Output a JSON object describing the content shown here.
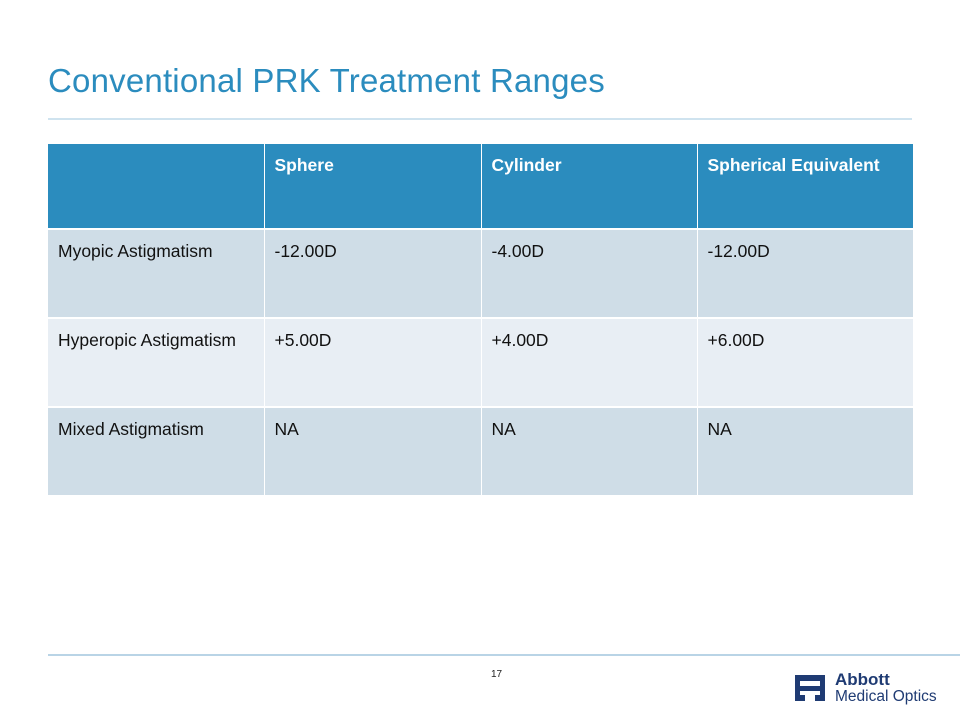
{
  "slide": {
    "title": "Conventional PRK Treatment Ranges",
    "page_number": "17"
  },
  "table": {
    "headers": [
      "",
      "Sphere",
      "Cylinder",
      "Spherical Equivalent"
    ],
    "rows": [
      [
        "Myopic Astigmatism",
        "-12.00D",
        "-4.00D",
        "-12.00D"
      ],
      [
        "Hyperopic Astigmatism",
        "+5.00D",
        "+4.00D",
        "+6.00D"
      ],
      [
        "Mixed Astigmatism",
        "NA",
        "NA",
        "NA"
      ]
    ]
  },
  "logo": {
    "line1": "Abbott",
    "line2": "Medical Optics"
  },
  "colors": {
    "accent": "#2b8cbe",
    "row_dark": "#cfdde7",
    "row_light": "#e8eef4",
    "brand_navy": "#1f3b73"
  }
}
